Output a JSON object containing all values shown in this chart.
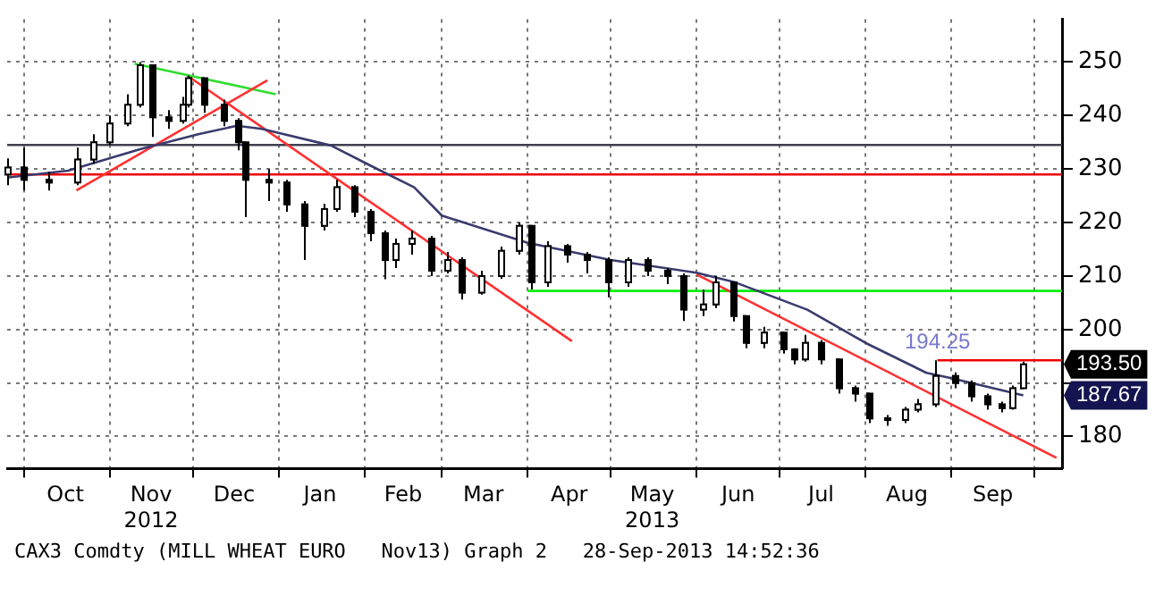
{
  "chart_data": {
    "type": "candlestick",
    "x": [
      "2012-09-25",
      "2012-10-01",
      "2012-10-10",
      "2012-10-20",
      "2012-10-26",
      "2012-11-01",
      "2012-11-07",
      "2012-11-12",
      "2012-11-16",
      "2012-11-22",
      "2012-11-27",
      "2012-11-29",
      "2012-12-05",
      "2012-12-12",
      "2012-12-17",
      "2012-12-20",
      "2012-12-28",
      "2013-01-04",
      "2013-01-10",
      "2013-01-17",
      "2013-01-22",
      "2013-01-28",
      "2013-02-03",
      "2013-02-08",
      "2013-02-12",
      "2013-02-18",
      "2013-02-25",
      "2013-03-03",
      "2013-03-08",
      "2013-03-15",
      "2013-03-22",
      "2013-03-29",
      "2013-04-02",
      "2013-04-08",
      "2013-04-15",
      "2013-04-22",
      "2013-04-30",
      "2013-05-07",
      "2013-05-14",
      "2013-05-21",
      "2013-05-27",
      "2013-06-03",
      "2013-06-08",
      "2013-06-14",
      "2013-06-19",
      "2013-06-25",
      "2013-07-02",
      "2013-07-06",
      "2013-07-10",
      "2013-07-16",
      "2013-07-22",
      "2013-07-28",
      "2013-08-02",
      "2013-08-09",
      "2013-08-15",
      "2013-08-20",
      "2013-08-26",
      "2013-09-02",
      "2013-09-08",
      "2013-09-14",
      "2013-09-19",
      "2013-09-23",
      "2013-09-27"
    ],
    "ohlc": [
      [
        229,
        232,
        227,
        230.3
      ],
      [
        230.3,
        234,
        226,
        228
      ],
      [
        228,
        229.5,
        226,
        227.5
      ],
      [
        227.5,
        234,
        227,
        231.8
      ],
      [
        231.8,
        236.5,
        231,
        235
      ],
      [
        235,
        240,
        234.5,
        238.5
      ],
      [
        238.5,
        244,
        238,
        242
      ],
      [
        242,
        250,
        241.5,
        249.4
      ],
      [
        249.4,
        249.5,
        236,
        239.7
      ],
      [
        239.7,
        241,
        237.5,
        239
      ],
      [
        239,
        243.5,
        238.5,
        242
      ],
      [
        242,
        247.5,
        241.5,
        247
      ],
      [
        247,
        247,
        240.5,
        242
      ],
      [
        242,
        243,
        238,
        239
      ],
      [
        239,
        239.5,
        233.5,
        235
      ],
      [
        235,
        235,
        221,
        228
      ],
      [
        228,
        230,
        224,
        227.5
      ],
      [
        227.5,
        228,
        222,
        223.4
      ],
      [
        223.4,
        224,
        213,
        219.4
      ],
      [
        219.4,
        223.5,
        218.5,
        222.5
      ],
      [
        222.5,
        228,
        222,
        226.6
      ],
      [
        226.6,
        227,
        221,
        222
      ],
      [
        222,
        222.5,
        216.5,
        218
      ],
      [
        218,
        218.5,
        209.4,
        213
      ],
      [
        213,
        217,
        211.5,
        216
      ],
      [
        216,
        218.5,
        214,
        217
      ],
      [
        217,
        217.5,
        210,
        211
      ],
      [
        211,
        214.5,
        210.5,
        213
      ],
      [
        213,
        213.5,
        205.6,
        206.9
      ],
      [
        206.9,
        211,
        206.5,
        210
      ],
      [
        210,
        215.5,
        209.5,
        214.7
      ],
      [
        214.7,
        220,
        214,
        219.4
      ],
      [
        219.4,
        219.5,
        207.5,
        208.8
      ],
      [
        208.8,
        216.5,
        208,
        215.6
      ],
      [
        215.6,
        216,
        212.5,
        214
      ],
      [
        214,
        214.5,
        210.5,
        213
      ],
      [
        213,
        213.5,
        206,
        208.8
      ],
      [
        208.8,
        213.5,
        208,
        213
      ],
      [
        213,
        213.5,
        210,
        211
      ],
      [
        211,
        211.5,
        208.5,
        210
      ],
      [
        210,
        210.5,
        201.6,
        203.7
      ],
      [
        203.7,
        207.5,
        202.5,
        204.7
      ],
      [
        204.7,
        210,
        204,
        208.8
      ],
      [
        208.8,
        209,
        201.5,
        202.5
      ],
      [
        202.5,
        202.5,
        196.5,
        197.5
      ],
      [
        197.5,
        200.5,
        196.5,
        199.4
      ],
      [
        199.4,
        199.5,
        195.5,
        196.3
      ],
      [
        196.3,
        196.5,
        193.5,
        194.4
      ],
      [
        194.4,
        199,
        194,
        197.5
      ],
      [
        197.5,
        198,
        193.5,
        194.4
      ],
      [
        194.4,
        194.5,
        188,
        189
      ],
      [
        189,
        189.5,
        186.5,
        188
      ],
      [
        188,
        188,
        182.5,
        183.4
      ],
      [
        183.4,
        184,
        182,
        183.1
      ],
      [
        183.1,
        185.5,
        182.5,
        185
      ],
      [
        185,
        187,
        184.5,
        186
      ],
      [
        186,
        194.25,
        185.5,
        191.3
      ],
      [
        191.3,
        192,
        189,
        190
      ],
      [
        190,
        190.5,
        186.5,
        187.5
      ],
      [
        187.5,
        188,
        185,
        186
      ],
      [
        186,
        186.5,
        184.5,
        185.3
      ],
      [
        185.3,
        189.5,
        185,
        189
      ],
      [
        189,
        194,
        189,
        193.5
      ]
    ],
    "series": [
      {
        "type": "line",
        "color": "#3a3a6e",
        "x": [
          "2012-09-25",
          "2012-10-17",
          "2012-11-12",
          "2012-12-03",
          "2012-12-17",
          "2012-12-26",
          "2013-01-20",
          "2013-02-03",
          "2013-02-19",
          "2013-03-01",
          "2013-04-01",
          "2013-05-01",
          "2013-06-01",
          "2013-06-15",
          "2013-07-11",
          "2013-08-01",
          "2013-08-23",
          "2013-09-01",
          "2013-09-27"
        ],
        "values": [
          228.4,
          229.7,
          233.7,
          236.5,
          238.1,
          237.5,
          234.4,
          230.7,
          226.6,
          221.3,
          216.2,
          213,
          210.6,
          208.8,
          203.7,
          197.5,
          191.9,
          190.9,
          187.67
        ]
      },
      {
        "type": "line",
        "color": "#ff3030",
        "x": [
          "2012-10-20",
          "2012-12-28"
        ],
        "values": [
          226,
          246.6
        ]
      },
      {
        "type": "line",
        "color": "#30dd30",
        "x": [
          "2012-11-10",
          "2012-12-31"
        ],
        "values": [
          249.7,
          244
        ]
      },
      {
        "type": "line",
        "color": "#ff3030",
        "x": [
          "2012-11-29",
          "2013-04-17"
        ],
        "values": [
          247.5,
          197.8
        ]
      },
      {
        "type": "line",
        "color": "#ff3030",
        "x": [
          "2013-06-01",
          "2013-10-09"
        ],
        "values": [
          210.3,
          176
        ]
      },
      {
        "type": "line",
        "color": "#00ee00",
        "x": [
          "2013-04-01",
          "2013-10-11"
        ],
        "values": [
          207.2,
          207.2
        ]
      },
      {
        "type": "line",
        "color": "#ee0000",
        "x": [
          "2013-08-27",
          "2013-10-11"
        ],
        "values": [
          194.25,
          194.25
        ]
      }
    ],
    "ref_lines": [
      {
        "axis": "y",
        "value": 234.5,
        "color": "#404050"
      },
      {
        "axis": "y",
        "value": 229,
        "color": "#ee0000"
      }
    ],
    "xlim": [
      "2012-09-25",
      "2013-10-11"
    ],
    "xticks": [
      {
        "value": "2012-10-01",
        "label": null
      },
      {
        "value": "2012-10-16",
        "label": "Oct"
      },
      {
        "value": "2012-11-01",
        "label": null
      },
      {
        "value": "2012-11-16",
        "label": "Nov\n2012"
      },
      {
        "value": "2012-12-01",
        "label": null
      },
      {
        "value": "2012-12-16",
        "label": "Dec"
      },
      {
        "value": "2013-01-01",
        "label": null
      },
      {
        "value": "2013-01-16",
        "label": "Jan"
      },
      {
        "value": "2013-02-01",
        "label": null
      },
      {
        "value": "2013-02-15",
        "label": "Feb"
      },
      {
        "value": "2013-03-01",
        "label": null
      },
      {
        "value": "2013-03-16",
        "label": "Mar"
      },
      {
        "value": "2013-04-01",
        "label": null
      },
      {
        "value": "2013-04-16",
        "label": "Apr"
      },
      {
        "value": "2013-05-01",
        "label": null
      },
      {
        "value": "2013-05-16",
        "label": "May\n2013"
      },
      {
        "value": "2013-06-01",
        "label": null
      },
      {
        "value": "2013-06-16",
        "label": "Jun"
      },
      {
        "value": "2013-07-01",
        "label": null
      },
      {
        "value": "2013-07-16",
        "label": "Jul"
      },
      {
        "value": "2013-08-01",
        "label": null
      },
      {
        "value": "2013-08-16",
        "label": "Aug"
      },
      {
        "value": "2013-09-01",
        "label": null
      },
      {
        "value": "2013-09-16",
        "label": "Sep"
      },
      {
        "value": "2013-10-01",
        "label": null
      }
    ],
    "ylim": [
      174,
      258
    ],
    "yticks": [
      180,
      {
        "value": 190,
        "label": null
      },
      200,
      210,
      220,
      230,
      240,
      250
    ],
    "grid": true,
    "marker": "none",
    "annotations": [
      {
        "text": "194.25",
        "x": "2013-08-27",
        "y": 194.25
      },
      {
        "text": "193.50",
        "x": "2013-09-27",
        "y": 193.5
      },
      {
        "text": "187.67",
        "x": "2013-09-27",
        "y": 187.67
      },
      "CAX3 Comdty (MILL WHEAT EURO   Nov13) Graph 2   28-Sep-2013 14:52:36"
    ]
  }
}
